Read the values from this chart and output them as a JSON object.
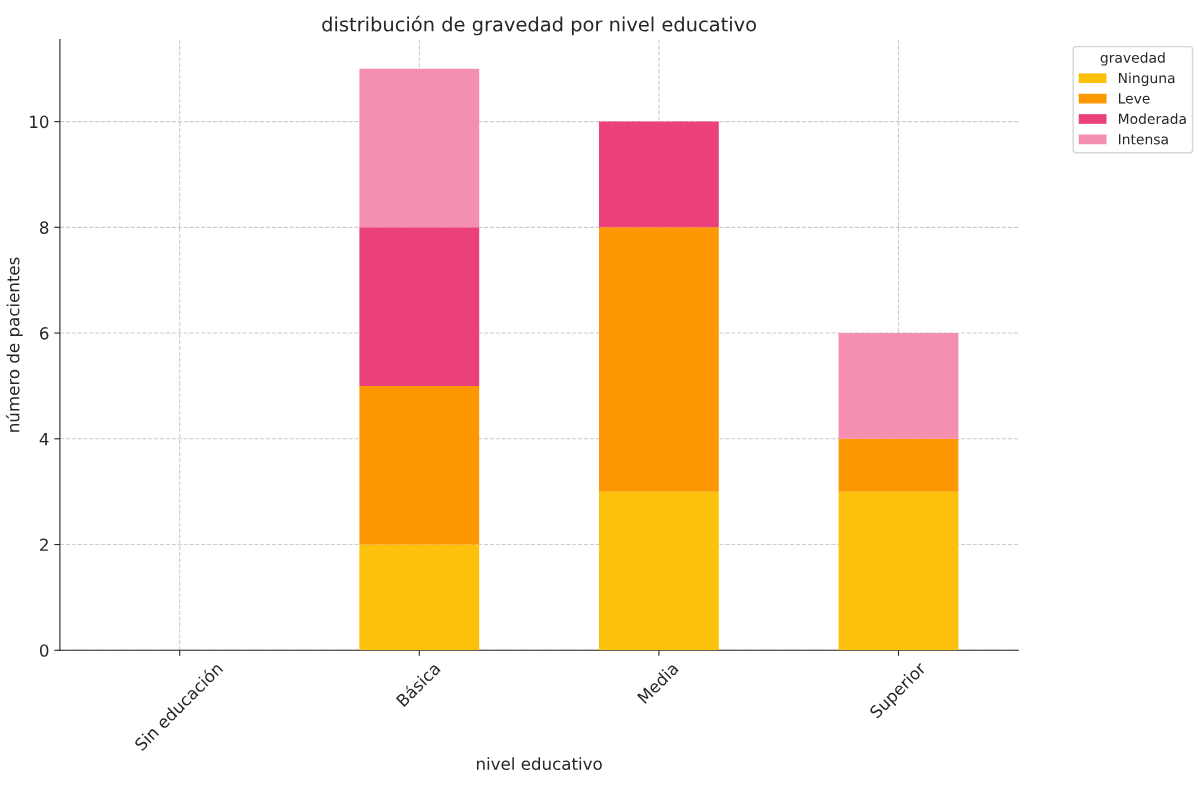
{
  "chart_data": {
    "type": "bar",
    "title": "distribución de gravedad por nivel educativo",
    "xlabel": "nivel educativo",
    "ylabel": "número de pacientes",
    "legend_title": "gravedad",
    "categories": [
      "Sin educación",
      "Básica",
      "Media",
      "Superior"
    ],
    "series": [
      {
        "name": "Ninguna",
        "color": "#fbc10b",
        "values": [
          0,
          2,
          3,
          3
        ]
      },
      {
        "name": "Leve",
        "color": "#fd9800",
        "values": [
          0,
          3,
          5,
          1
        ]
      },
      {
        "name": "Moderada",
        "color": "#ec407a",
        "values": [
          0,
          3,
          2,
          0
        ]
      },
      {
        "name": "Intensa",
        "color": "#f48fb1",
        "values": [
          0,
          3,
          0,
          2
        ]
      }
    ],
    "stacked": true,
    "ylim": [
      0,
      11.55
    ],
    "yticks": [
      0,
      2,
      4,
      6,
      8,
      10
    ],
    "grid": true,
    "legend": "top right"
  }
}
